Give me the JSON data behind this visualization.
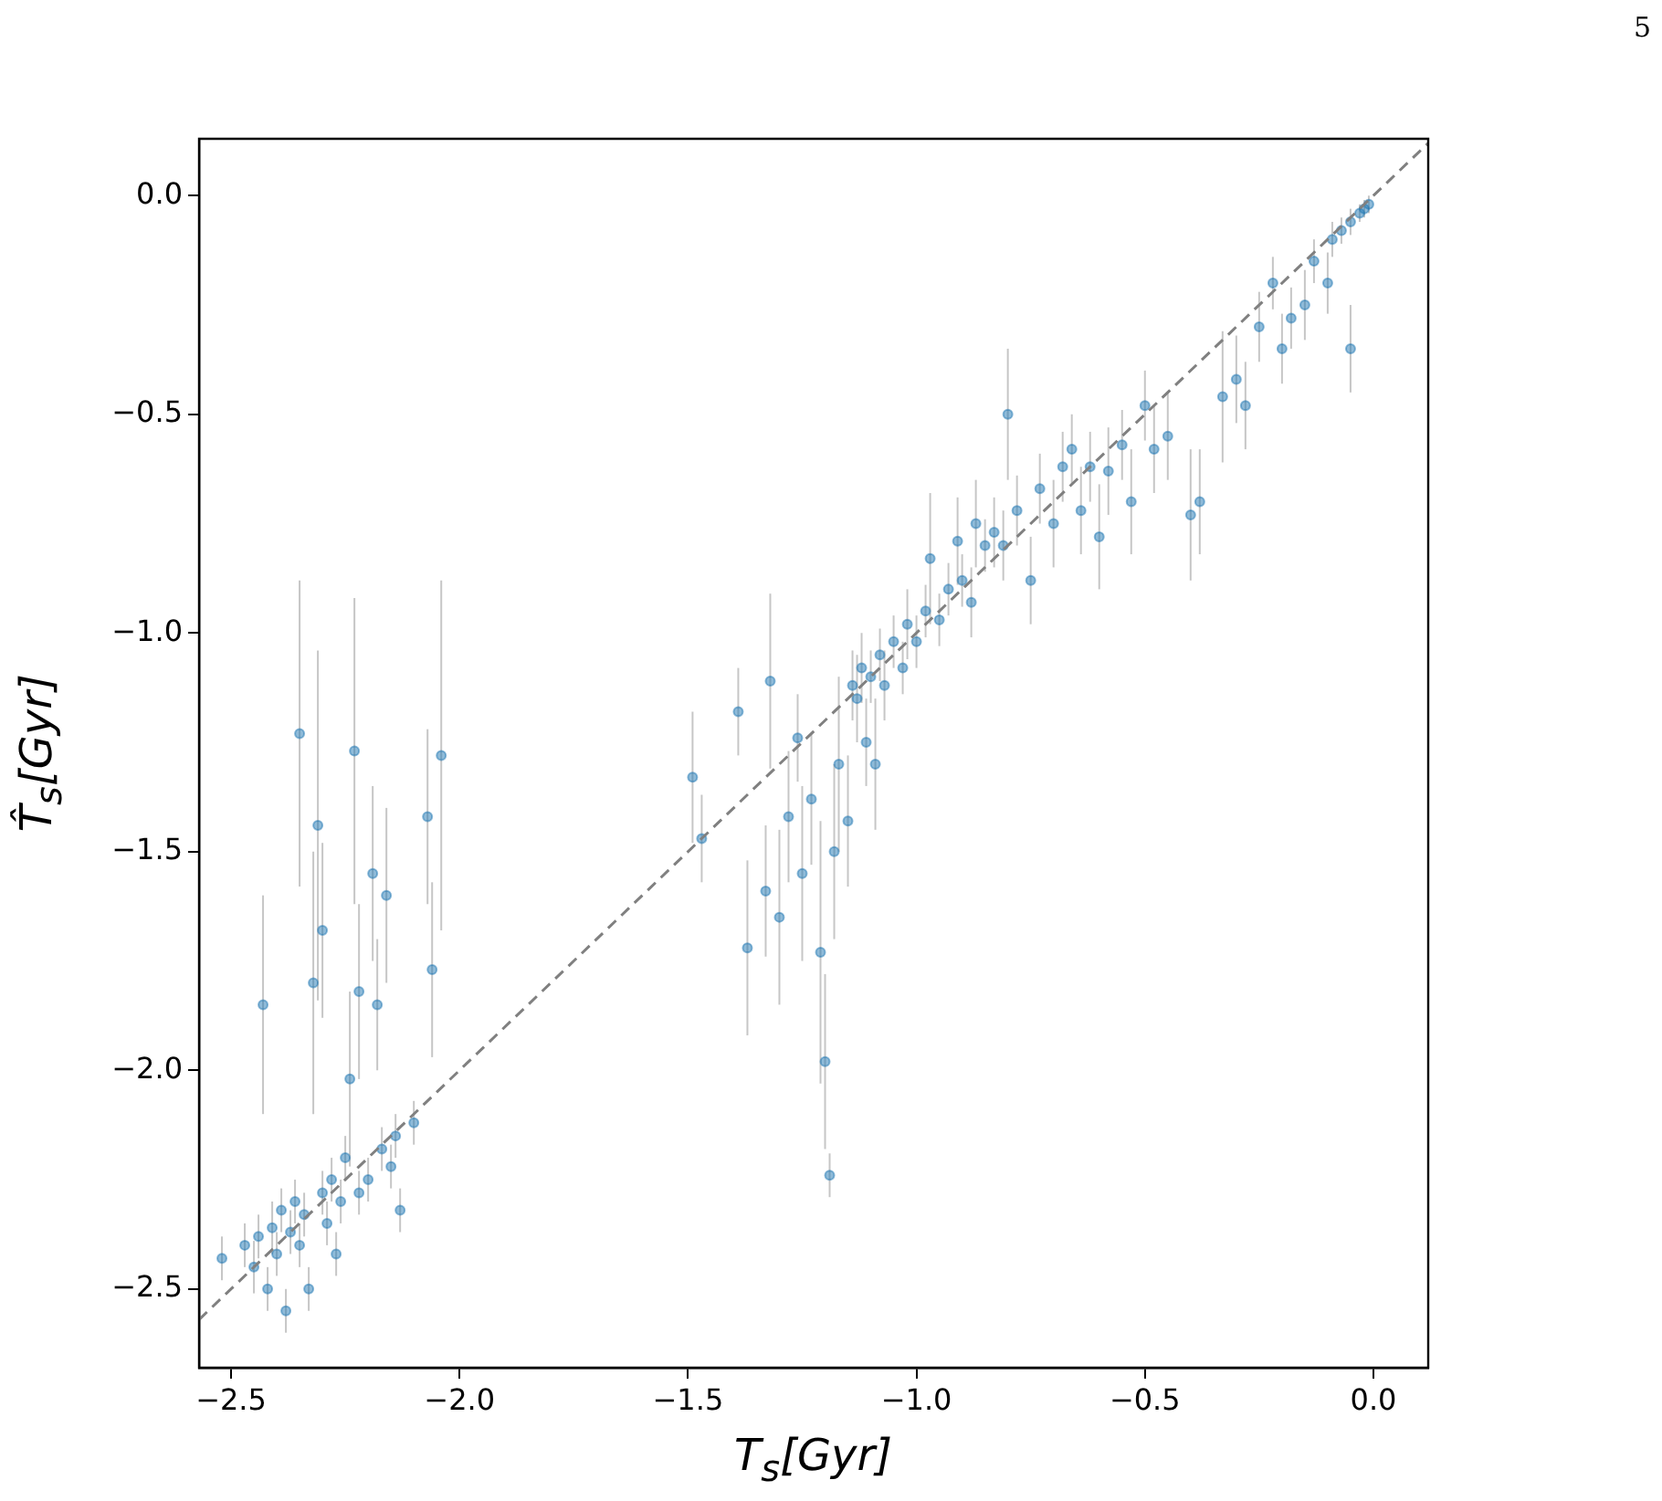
{
  "chart_data": {
    "type": "scatter",
    "xlabel": "T$_{s}$[Gyr]",
    "ylabel": "T̂$_{s}$[Gyr]",
    "annotations": [
      "5"
    ],
    "xlim": [
      -2.57,
      0.12
    ],
    "ylim": [
      -2.68,
      0.13
    ],
    "xticks": [
      {
        "value": -2.5,
        "label": "−2.5"
      },
      {
        "value": -2.0,
        "label": "−2.0"
      },
      {
        "value": -1.5,
        "label": "−1.5"
      },
      {
        "value": -1.0,
        "label": "−1.0"
      },
      {
        "value": -0.5,
        "label": "−0.5"
      },
      {
        "value": 0.0,
        "label": "0.0"
      }
    ],
    "yticks": [
      {
        "value": -2.5,
        "label": "−2.5"
      },
      {
        "value": -2.0,
        "label": "−2.0"
      },
      {
        "value": -1.5,
        "label": "−1.5"
      },
      {
        "value": -1.0,
        "label": "−1.0"
      },
      {
        "value": -0.5,
        "label": "−0.5"
      },
      {
        "value": 0.0,
        "label": "0.0"
      }
    ],
    "grid": false,
    "legend": false,
    "series": [
      {
        "type": "scatter",
        "color": "#1f77b4",
        "marker": "circle",
        "x": [
          -2.52,
          -2.47,
          -2.45,
          -2.44,
          -2.43,
          -2.42,
          -2.41,
          -2.4,
          -2.39,
          -2.38,
          -2.37,
          -2.36,
          -2.35,
          -2.35,
          -2.34,
          -2.33,
          -2.32,
          -2.31,
          -2.3,
          -2.3,
          -2.29,
          -2.28,
          -2.27,
          -2.26,
          -2.25,
          -2.24,
          -2.23,
          -2.22,
          -2.22,
          -2.2,
          -2.19,
          -2.18,
          -2.17,
          -2.16,
          -2.15,
          -2.14,
          -2.13,
          -2.1,
          -2.07,
          -2.06,
          -2.04,
          -1.49,
          -1.47,
          -1.39,
          -1.37,
          -1.33,
          -1.32,
          -1.3,
          -1.28,
          -1.26,
          -1.25,
          -1.23,
          -1.21,
          -1.2,
          -1.19,
          -1.18,
          -1.17,
          -1.15,
          -1.14,
          -1.13,
          -1.12,
          -1.11,
          -1.1,
          -1.09,
          -1.08,
          -1.07,
          -1.05,
          -1.03,
          -1.02,
          -1.0,
          -0.98,
          -0.97,
          -0.95,
          -0.93,
          -0.91,
          -0.9,
          -0.88,
          -0.87,
          -0.85,
          -0.83,
          -0.81,
          -0.8,
          -0.78,
          -0.75,
          -0.73,
          -0.7,
          -0.68,
          -0.66,
          -0.64,
          -0.62,
          -0.6,
          -0.58,
          -0.55,
          -0.53,
          -0.5,
          -0.48,
          -0.45,
          -0.4,
          -0.38,
          -0.33,
          -0.3,
          -0.28,
          -0.25,
          -0.22,
          -0.2,
          -0.18,
          -0.15,
          -0.13,
          -0.1,
          -0.09,
          -0.07,
          -0.05,
          -0.05,
          -0.03,
          -0.02,
          -0.01
        ],
        "values": [
          -2.43,
          -2.4,
          -2.45,
          -2.38,
          -1.85,
          -2.5,
          -2.36,
          -2.42,
          -2.32,
          -2.55,
          -2.37,
          -2.3,
          -1.23,
          -2.4,
          -2.33,
          -2.5,
          -1.8,
          -1.44,
          -1.68,
          -2.28,
          -2.35,
          -2.25,
          -2.42,
          -2.3,
          -2.2,
          -2.02,
          -1.27,
          -1.82,
          -2.28,
          -2.25,
          -1.55,
          -1.85,
          -2.18,
          -1.6,
          -2.22,
          -2.15,
          -2.32,
          -2.12,
          -1.42,
          -1.77,
          -1.28,
          -1.33,
          -1.47,
          -1.18,
          -1.72,
          -1.59,
          -1.11,
          -1.65,
          -1.42,
          -1.24,
          -1.55,
          -1.38,
          -1.73,
          -1.98,
          -2.24,
          -1.5,
          -1.3,
          -1.43,
          -1.12,
          -1.15,
          -1.08,
          -1.25,
          -1.1,
          -1.3,
          -1.05,
          -1.12,
          -1.02,
          -1.08,
          -0.98,
          -1.02,
          -0.95,
          -0.83,
          -0.97,
          -0.9,
          -0.79,
          -0.88,
          -0.93,
          -0.75,
          -0.8,
          -0.77,
          -0.8,
          -0.5,
          -0.72,
          -0.88,
          -0.67,
          -0.75,
          -0.62,
          -0.58,
          -0.72,
          -0.62,
          -0.78,
          -0.63,
          -0.57,
          -0.7,
          -0.48,
          -0.58,
          -0.55,
          -0.73,
          -0.7,
          -0.46,
          -0.42,
          -0.48,
          -0.3,
          -0.2,
          -0.35,
          -0.28,
          -0.25,
          -0.15,
          -0.2,
          -0.1,
          -0.08,
          -0.35,
          -0.06,
          -0.04,
          -0.03,
          -0.02
        ],
        "errors": [
          0.05,
          0.05,
          0.06,
          0.05,
          0.25,
          0.05,
          0.06,
          0.05,
          0.05,
          0.05,
          0.05,
          0.05,
          0.35,
          0.05,
          0.05,
          0.05,
          0.3,
          0.4,
          0.2,
          0.05,
          0.05,
          0.05,
          0.05,
          0.05,
          0.05,
          0.2,
          0.35,
          0.2,
          0.05,
          0.05,
          0.2,
          0.15,
          0.05,
          0.2,
          0.05,
          0.05,
          0.05,
          0.05,
          0.2,
          0.2,
          0.4,
          0.15,
          0.1,
          0.1,
          0.2,
          0.15,
          0.2,
          0.2,
          0.15,
          0.1,
          0.2,
          0.15,
          0.3,
          0.2,
          0.05,
          0.2,
          0.2,
          0.15,
          0.08,
          0.1,
          0.08,
          0.1,
          0.06,
          0.15,
          0.06,
          0.08,
          0.06,
          0.06,
          0.08,
          0.06,
          0.06,
          0.15,
          0.06,
          0.06,
          0.1,
          0.06,
          0.08,
          0.1,
          0.06,
          0.08,
          0.08,
          0.15,
          0.08,
          0.1,
          0.08,
          0.1,
          0.08,
          0.08,
          0.1,
          0.08,
          0.12,
          0.1,
          0.08,
          0.12,
          0.08,
          0.1,
          0.1,
          0.15,
          0.12,
          0.15,
          0.1,
          0.1,
          0.08,
          0.06,
          0.08,
          0.07,
          0.08,
          0.05,
          0.07,
          0.04,
          0.03,
          0.1,
          0.03,
          0.02,
          0.02,
          0.02
        ]
      },
      {
        "type": "line",
        "color": "#808080",
        "marker": "none",
        "line_style": "dashed",
        "x": [
          -2.57,
          0.12
        ],
        "values": [
          -2.57,
          0.12
        ]
      }
    ]
  }
}
